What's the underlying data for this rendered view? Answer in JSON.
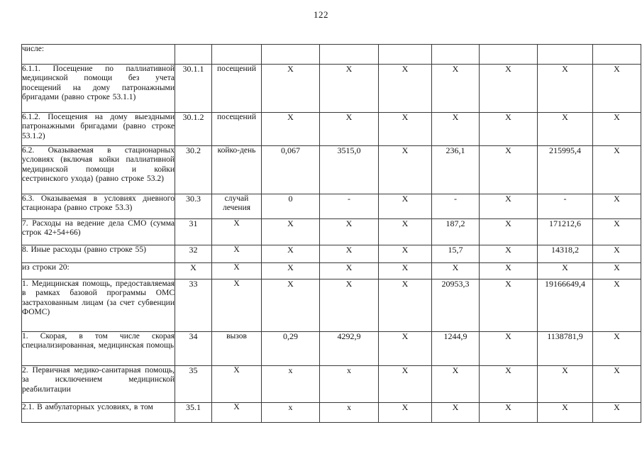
{
  "page": {
    "number": "122"
  },
  "table": {
    "rows": [
      {
        "label": "числе:",
        "code": "",
        "unit": "",
        "values": [
          "",
          "",
          "",
          "",
          "",
          "",
          ""
        ]
      },
      {
        "label": "6.1.1. Посещение по паллиативной медицинской помощи без учета посещений на дому патронажными бригадами (равно строке 53.1.1)",
        "code": "30.1.1",
        "unit": "посещений",
        "values": [
          "X",
          "X",
          "X",
          "X",
          "X",
          "X",
          "X"
        ]
      },
      {
        "label": "6.1.2. Посещения на дому выездными патронажными бригадами (равно строке 53.1.2)",
        "code": "30.1.2",
        "unit": "посещений",
        "values": [
          "X",
          "X",
          "X",
          "X",
          "X",
          "X",
          "X"
        ]
      },
      {
        "label": "6.2. Оказываемая в стационарных условиях (включая койки паллиативной медицинской помощи и койки сестринского ухода) (равно строке 53.2)",
        "code": "30.2",
        "unit": "койко-день",
        "values": [
          "0,067",
          "3515,0",
          "X",
          "236,1",
          "X",
          "215995,4",
          "X"
        ]
      },
      {
        "label": "6.3. Оказываемая в условиях дневного стационара (равно строке 53.3)",
        "code": "30.3",
        "unit": "случай лечения",
        "values": [
          "0",
          "-",
          "X",
          "-",
          "X",
          "-",
          "X"
        ]
      },
      {
        "label": "7. Расходы на ведение дела СМО (сумма строк 42+54+66)",
        "code": "31",
        "unit": "X",
        "values": [
          "X",
          "X",
          "X",
          "187,2",
          "X",
          "171212,6",
          "X"
        ]
      },
      {
        "label": "8. Иные расходы (равно строке 55)",
        "code": "32",
        "unit": "X",
        "values": [
          "X",
          "X",
          "X",
          "15,7",
          "X",
          "14318,2",
          "X"
        ]
      },
      {
        "label": "из строки 20:",
        "code": "X",
        "unit": "X",
        "values": [
          "X",
          "X",
          "X",
          "X",
          "X",
          "X",
          "X"
        ]
      },
      {
        "label": "1. Медицинская помощь, предоставляемая в рамках базовой программы ОМС застрахованным лицам (за счет субвенции ФОМС)",
        "code": "33",
        "unit": "X",
        "values": [
          "X",
          "X",
          "X",
          "20953,3",
          "X",
          "19166649,4",
          "X"
        ]
      },
      {
        "label": "1. Скорая, в том числе скорая специализированная, медицинская помощь",
        "code": "34",
        "unit": "вызов",
        "values": [
          "0,29",
          "4292,9",
          "X",
          "1244,9",
          "X",
          "1138781,9",
          "X"
        ]
      },
      {
        "label": "2. Первичная медико-санитарная помощь, за исключением медицинской реабилитации",
        "code": "35",
        "unit": "X",
        "values": [
          "x",
          "x",
          "X",
          "X",
          "X",
          "X",
          "X"
        ]
      },
      {
        "label": "2.1. В амбулаторных условиях, в том",
        "code": "35.1",
        "unit": "X",
        "values": [
          "x",
          "x",
          "X",
          "X",
          "X",
          "X",
          "X"
        ]
      }
    ]
  }
}
